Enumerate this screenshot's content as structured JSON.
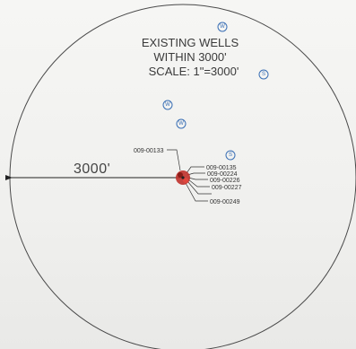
{
  "title": {
    "line1": "EXISTING WELLS",
    "line2": "WITHIN 3000'",
    "line3": "SCALE: 1\"=3000'"
  },
  "radius_label": "3000'",
  "center_wells": [
    {
      "id": "009-00133"
    },
    {
      "id": "009-00135"
    },
    {
      "id": "009-00224"
    },
    {
      "id": "009-00226"
    },
    {
      "id": "009-00227"
    },
    {
      "id": "009-00249"
    }
  ],
  "markers": [
    {
      "letter": "W"
    },
    {
      "letter": "S"
    },
    {
      "letter": "W"
    },
    {
      "letter": "W"
    },
    {
      "letter": "S"
    }
  ],
  "colors": {
    "circle": "#4a4a4a",
    "marker": "#3a6fb5",
    "center": "#c0312b",
    "text": "#333333"
  }
}
